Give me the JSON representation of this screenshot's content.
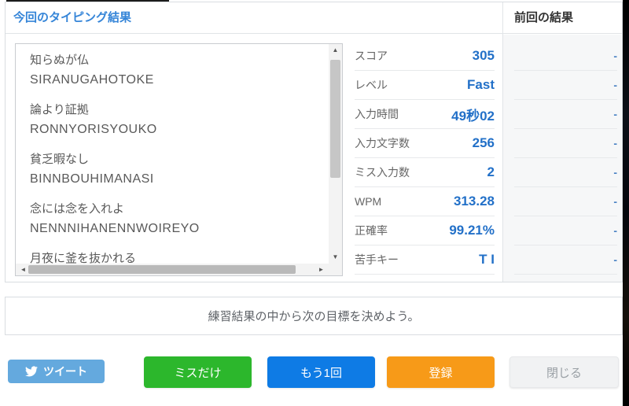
{
  "header": {
    "title": "今回のタイピング結果",
    "previous_title": "前回の結果"
  },
  "practice_text": {
    "lines": [
      {
        "jp": "知らぬが仏",
        "romaji": "SIRANUGAHOTOKE"
      },
      {
        "jp": "論より証拠",
        "romaji": "RONNYORISYOUKO"
      },
      {
        "jp": "貧乏暇なし",
        "romaji": "BINNBOUHIMANASI"
      },
      {
        "jp": "念には念を入れよ",
        "romaji": "NENNNIHANENNWOIREYO"
      },
      {
        "jp": "月夜に釜を抜かれる",
        "romaji": ""
      }
    ]
  },
  "stats": {
    "rows": [
      {
        "label": "スコア",
        "value": "305",
        "previous": "-"
      },
      {
        "label": "レベル",
        "value": "Fast",
        "previous": "-"
      },
      {
        "label": "入力時間",
        "value": "49秒02",
        "previous": "-"
      },
      {
        "label": "入力文字数",
        "value": "256",
        "previous": "-"
      },
      {
        "label": "ミス入力数",
        "value": "2",
        "previous": "-"
      },
      {
        "label": "WPM",
        "value": "313.28",
        "previous": "-"
      },
      {
        "label": "正確率",
        "value": "99.21%",
        "previous": "-"
      },
      {
        "label": "苦手キー",
        "value": "T I",
        "previous": "-"
      }
    ]
  },
  "message": "練習結果の中から次の目標を決めよう。",
  "buttons": {
    "tweet": "ツイート",
    "miss_only": "ミスだけ",
    "retry": "もう1回",
    "register": "登録",
    "close": "閉じる"
  },
  "icons": {
    "twitter_bird": "twitter-bird-icon",
    "scroll_up": "▲",
    "scroll_down": "▼",
    "scroll_left": "◄",
    "scroll_right": "►"
  },
  "colors": {
    "title_blue": "#3585d8",
    "value_blue": "#2270c8",
    "tweet_button": "#64a9de",
    "miss_button": "#2cb72c",
    "retry_button": "#0e7be5",
    "register_button": "#f79a18",
    "close_button_bg": "#f1f2f3"
  }
}
